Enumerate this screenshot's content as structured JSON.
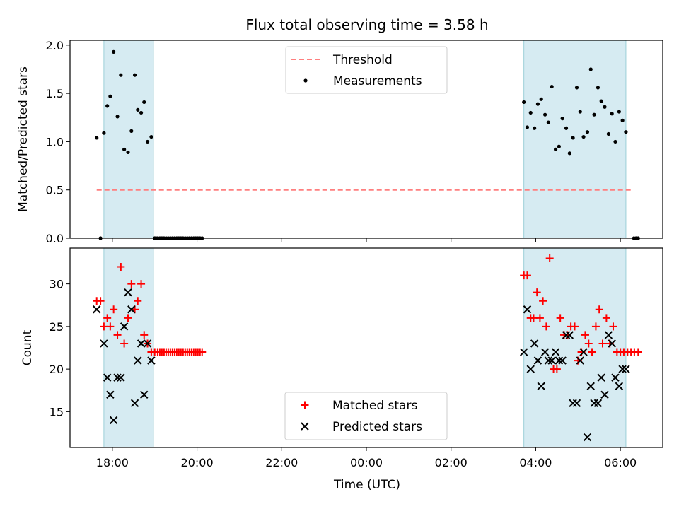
{
  "chart_data": [
    {
      "type": "scatter",
      "title": "Flux total observing time = 3.58 h",
      "xlabel": "",
      "ylabel": "Matched/Predicted stars",
      "ylim": [
        0,
        2.05
      ],
      "yticks": [
        0.0,
        0.5,
        1.0,
        1.5,
        2.0
      ],
      "ytick_labels": [
        "0.0",
        "0.5",
        "1.0",
        "1.5",
        "2.0"
      ],
      "legend_position": "top-center",
      "shaded_intervals_hours": [
        [
          17.8,
          18.97
        ],
        [
          27.72,
          30.13
        ]
      ],
      "series": [
        {
          "name": "Threshold",
          "style": "dashed-line",
          "color": "#ff7f7f",
          "x": [
            17.63,
            30.3
          ],
          "y": [
            0.5,
            0.5
          ]
        },
        {
          "name": "Measurements",
          "style": "dot",
          "color": "#000000",
          "x": [
            17.63,
            17.72,
            17.8,
            17.88,
            17.95,
            18.03,
            18.12,
            18.2,
            18.28,
            18.37,
            18.45,
            18.53,
            18.6,
            18.68,
            18.75,
            18.83,
            18.92,
            19.0,
            19.03,
            19.07,
            19.12,
            19.17,
            19.22,
            19.27,
            19.32,
            19.37,
            19.42,
            19.47,
            19.52,
            19.57,
            19.62,
            19.67,
            19.72,
            19.77,
            19.82,
            19.87,
            19.92,
            19.97,
            20.02,
            20.07,
            20.12,
            27.72,
            27.8,
            27.88,
            27.97,
            28.05,
            28.13,
            28.22,
            28.3,
            28.38,
            28.47,
            28.55,
            28.63,
            28.72,
            28.8,
            28.88,
            28.97,
            29.05,
            29.13,
            29.22,
            29.3,
            29.38,
            29.47,
            29.55,
            29.63,
            29.72,
            29.8,
            29.88,
            29.97,
            30.05,
            30.13,
            30.32,
            30.37,
            30.42
          ],
          "y": [
            1.04,
            0.0,
            1.09,
            1.37,
            1.47,
            1.93,
            1.26,
            1.69,
            0.92,
            0.89,
            1.11,
            1.69,
            1.33,
            1.3,
            1.41,
            1.0,
            1.05,
            0.0,
            0.0,
            0.0,
            0.0,
            0.0,
            0.0,
            0.0,
            0.0,
            0.0,
            0.0,
            0.0,
            0.0,
            0.0,
            0.0,
            0.0,
            0.0,
            0.0,
            0.0,
            0.0,
            0.0,
            0.0,
            0.0,
            0.0,
            0.0,
            1.41,
            1.15,
            1.3,
            1.14,
            1.39,
            1.44,
            1.28,
            1.2,
            1.57,
            0.92,
            0.95,
            1.24,
            1.14,
            0.88,
            1.04,
            1.56,
            1.31,
            1.05,
            1.1,
            1.75,
            1.28,
            1.56,
            1.42,
            1.36,
            1.08,
            1.29,
            1.0,
            1.31,
            1.22,
            1.1,
            0.0,
            0.0,
            0.0
          ]
        }
      ]
    },
    {
      "type": "scatter",
      "title": "",
      "xlabel": "Time (UTC)",
      "ylabel": "Count",
      "ylim": [
        10.8,
        34.2
      ],
      "yticks": [
        15,
        20,
        25,
        30
      ],
      "ytick_labels": [
        "15",
        "20",
        "25",
        "30"
      ],
      "xlim": [
        17.0,
        31.0
      ],
      "xticks": [
        18,
        20,
        22,
        24,
        26,
        28,
        30
      ],
      "xtick_labels": [
        "18:00",
        "20:00",
        "22:00",
        "00:00",
        "02:00",
        "04:00",
        "06:00"
      ],
      "legend_position": "bottom-center",
      "shaded_intervals_hours": [
        [
          17.8,
          18.97
        ],
        [
          27.72,
          30.13
        ]
      ],
      "series": [
        {
          "name": "Matched stars",
          "style": "plus",
          "color": "#ff0000",
          "x": [
            17.63,
            17.72,
            17.8,
            17.88,
            17.95,
            18.03,
            18.12,
            18.2,
            18.28,
            18.37,
            18.45,
            18.53,
            18.6,
            18.68,
            18.75,
            18.83,
            18.92,
            19.0,
            19.07,
            19.12,
            19.17,
            19.22,
            19.27,
            19.32,
            19.37,
            19.42,
            19.47,
            19.52,
            19.57,
            19.62,
            19.67,
            19.72,
            19.77,
            19.82,
            19.87,
            19.92,
            19.97,
            20.02,
            20.07,
            20.12,
            27.72,
            27.8,
            27.88,
            27.95,
            28.03,
            28.1,
            28.17,
            28.25,
            28.33,
            28.42,
            28.5,
            28.58,
            28.67,
            28.75,
            28.83,
            28.92,
            29.0,
            29.08,
            29.17,
            29.25,
            29.33,
            29.42,
            29.5,
            29.58,
            29.67,
            29.75,
            29.83,
            29.92,
            30.0,
            30.08,
            30.17,
            30.25,
            30.33,
            30.42
          ],
          "y": [
            28,
            28,
            25,
            26,
            25,
            27,
            24,
            32,
            23,
            26,
            30,
            27,
            28,
            30,
            24,
            23,
            22,
            22,
            22,
            22,
            22,
            22,
            22,
            22,
            22,
            22,
            22,
            22,
            22,
            22,
            22,
            22,
            22,
            22,
            22,
            22,
            22,
            22,
            22,
            22,
            31,
            31,
            26,
            26,
            29,
            26,
            28,
            25,
            33,
            20,
            20,
            26,
            24,
            24,
            25,
            25,
            21,
            22,
            24,
            23,
            22,
            25,
            27,
            23,
            26,
            23,
            25,
            22,
            22,
            22,
            22,
            22,
            22,
            22
          ]
        },
        {
          "name": "Predicted stars",
          "style": "x",
          "color": "#000000",
          "x": [
            17.63,
            17.8,
            17.88,
            17.95,
            18.03,
            18.12,
            18.2,
            18.28,
            18.37,
            18.45,
            18.53,
            18.6,
            18.68,
            18.75,
            18.83,
            18.92,
            27.72,
            27.8,
            27.88,
            27.97,
            28.05,
            28.13,
            28.22,
            28.3,
            28.38,
            28.47,
            28.55,
            28.63,
            28.72,
            28.8,
            28.88,
            28.97,
            29.05,
            29.13,
            29.22,
            29.3,
            29.38,
            29.47,
            29.55,
            29.63,
            29.72,
            29.8,
            29.88,
            29.97,
            30.05,
            30.13
          ],
          "y": [
            27,
            23,
            19,
            17,
            14,
            19,
            19,
            25,
            29,
            27,
            16,
            21,
            23,
            17,
            23,
            21,
            22,
            27,
            20,
            23,
            21,
            18,
            22,
            21,
            21,
            22,
            21,
            21,
            24,
            24,
            16,
            16,
            21,
            22,
            12,
            18,
            16,
            16,
            19,
            17,
            24,
            23,
            19,
            18,
            20,
            20
          ]
        }
      ]
    }
  ]
}
